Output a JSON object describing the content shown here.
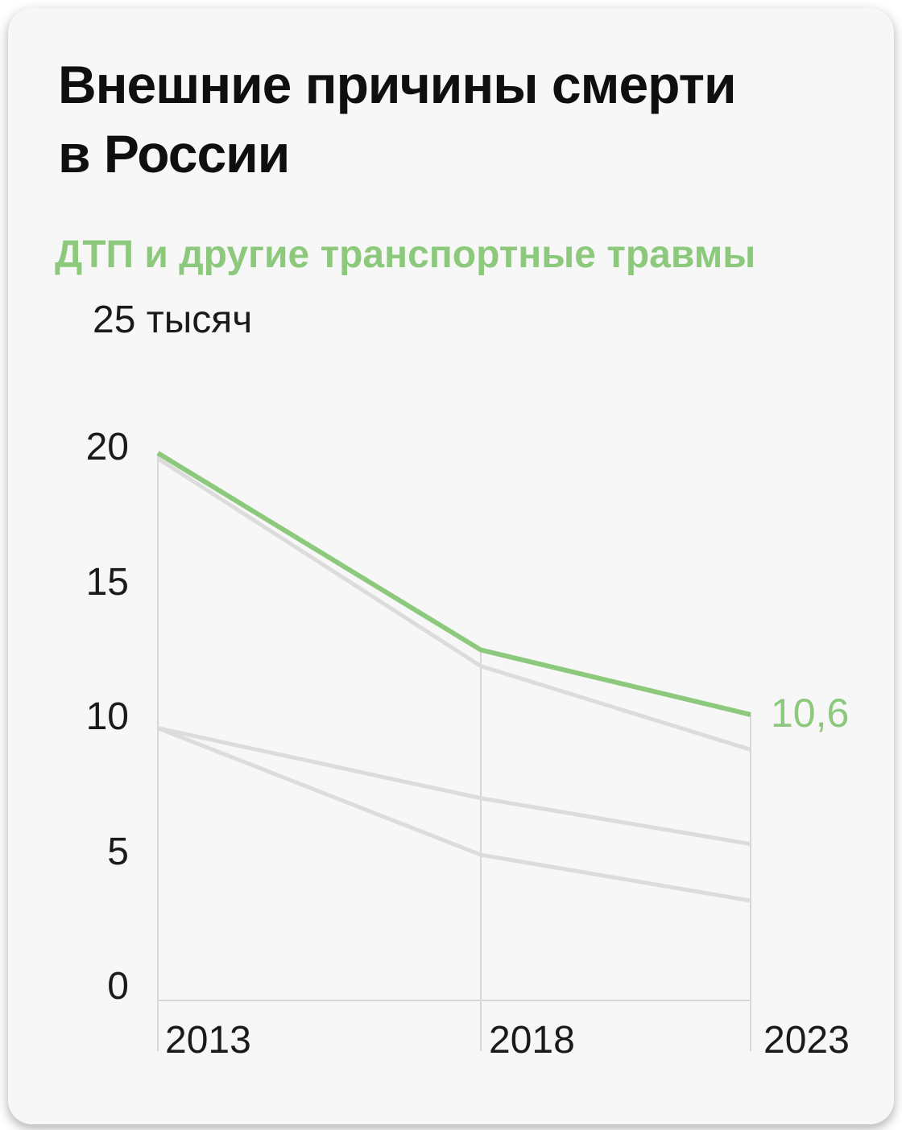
{
  "header": {
    "title_line1": "Внешние причины смерти",
    "title_line2": "в России",
    "subtitle_highlight": "ДТП",
    "subtitle_rest": " и другие транспортные травмы"
  },
  "colors": {
    "page_bg": "#ffffff",
    "card_bg": "#f7f7f7",
    "accent_green": "#8dc97c",
    "context_line_gray": "#dcdcdc",
    "grid_line": "#d7d7d7",
    "text_primary": "#0f0f0f",
    "text_secondary": "#1a1a1a"
  },
  "chart_data": {
    "type": "line",
    "x": [
      "2013",
      "2018",
      "2023"
    ],
    "y_axis_unit_label": "25 тысяч",
    "y_ticks": [
      "0",
      "5",
      "10",
      "15",
      "20"
    ],
    "y_tick_values": [
      0,
      5,
      10,
      15,
      20
    ],
    "ylim": [
      0,
      25
    ],
    "grid": {
      "vertical_lines_at_years": true,
      "baseline": true,
      "horizontal_lines": false
    },
    "legend": "none",
    "series": [
      {
        "name": "ДТП и другие транспортные травмы",
        "role": "highlight",
        "color": "#8dc97c",
        "values": [
          20.3,
          13.0,
          10.6
        ],
        "end_label": "10,6"
      },
      {
        "name": "",
        "role": "context",
        "color": "#dcdcdc",
        "values": [
          20.1,
          12.4,
          9.3
        ]
      },
      {
        "name": "",
        "role": "context",
        "color": "#dcdcdc",
        "values": [
          10.1,
          7.5,
          5.8
        ]
      },
      {
        "name": "",
        "role": "context",
        "color": "#dcdcdc",
        "values": [
          10.1,
          5.4,
          3.7
        ]
      }
    ]
  }
}
